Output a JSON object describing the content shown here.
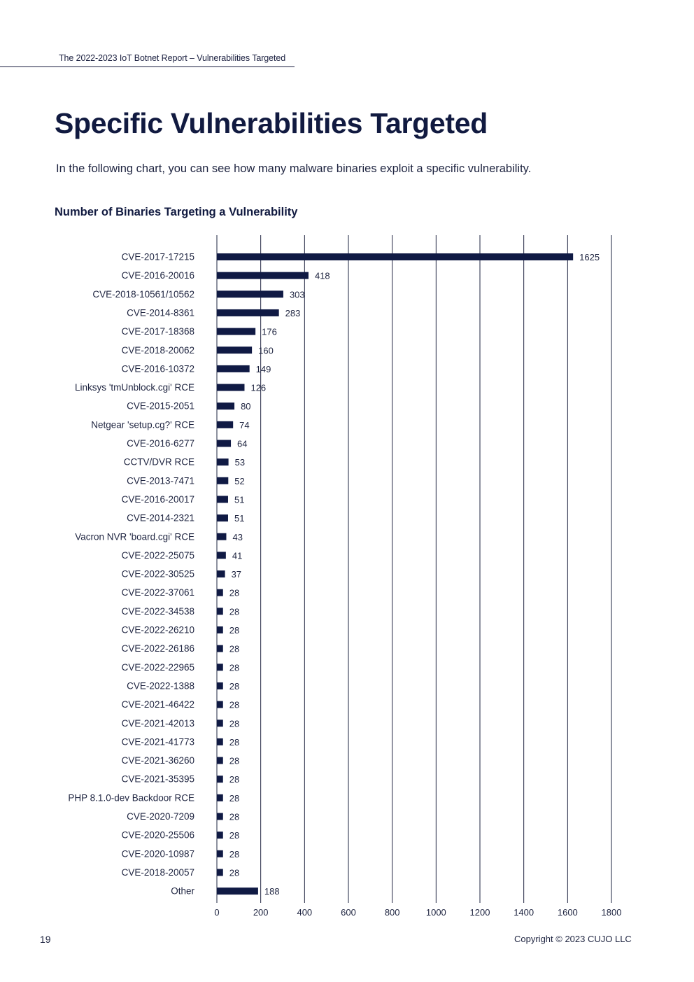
{
  "header": {
    "running_title": "The 2022-2023 IoT Botnet Report – Vulnerabilities Targeted"
  },
  "page": {
    "title": "Specific Vulnerabilities Targeted",
    "intro": "In the following chart, you can see how many malware binaries exploit a specific vulnerability.",
    "page_number": "19",
    "copyright": "Copyright © 2023 CUJO LLC"
  },
  "colors": {
    "bar": "#101a44",
    "text": "#1e2440",
    "gridline": "#1e2440"
  },
  "chart_data": {
    "type": "bar",
    "orientation": "horizontal",
    "title": "Number of Binaries Targeting a Vulnerability",
    "xlabel": "",
    "ylabel": "",
    "xlim": [
      0,
      1800
    ],
    "xticks": [
      0,
      200,
      400,
      600,
      800,
      1000,
      1200,
      1400,
      1600,
      1800
    ],
    "grid": true,
    "categories": [
      "CVE-2017-17215",
      "CVE-2016-20016",
      "CVE-2018-10561/10562",
      "CVE-2014-8361",
      "CVE-2017-18368",
      "CVE-2018-20062",
      "CVE-2016-10372",
      "Linksys 'tmUnblock.cgi' RCE",
      "CVE-2015-2051",
      "Netgear 'setup.cg?' RCE",
      "CVE-2016-6277",
      "CCTV/DVR RCE",
      "CVE-2013-7471",
      "CVE-2016-20017",
      "CVE-2014-2321",
      "Vacron NVR 'board.cgi' RCE",
      "CVE-2022-25075",
      "CVE-2022-30525",
      "CVE-2022-37061",
      "CVE-2022-34538",
      "CVE-2022-26210",
      "CVE-2022-26186",
      "CVE-2022-22965",
      "CVE-2022-1388",
      "CVE-2021-46422",
      "CVE-2021-42013",
      "CVE-2021-41773",
      "CVE-2021-36260",
      "CVE-2021-35395",
      "PHP 8.1.0-dev Backdoor RCE",
      "CVE-2020-7209",
      "CVE-2020-25506",
      "CVE-2020-10987",
      "CVE-2018-20057",
      "Other"
    ],
    "values": [
      1625,
      418,
      303,
      283,
      176,
      160,
      149,
      126,
      80,
      74,
      64,
      53,
      52,
      51,
      51,
      43,
      41,
      37,
      28,
      28,
      28,
      28,
      28,
      28,
      28,
      28,
      28,
      28,
      28,
      28,
      28,
      28,
      28,
      28,
      188
    ]
  }
}
